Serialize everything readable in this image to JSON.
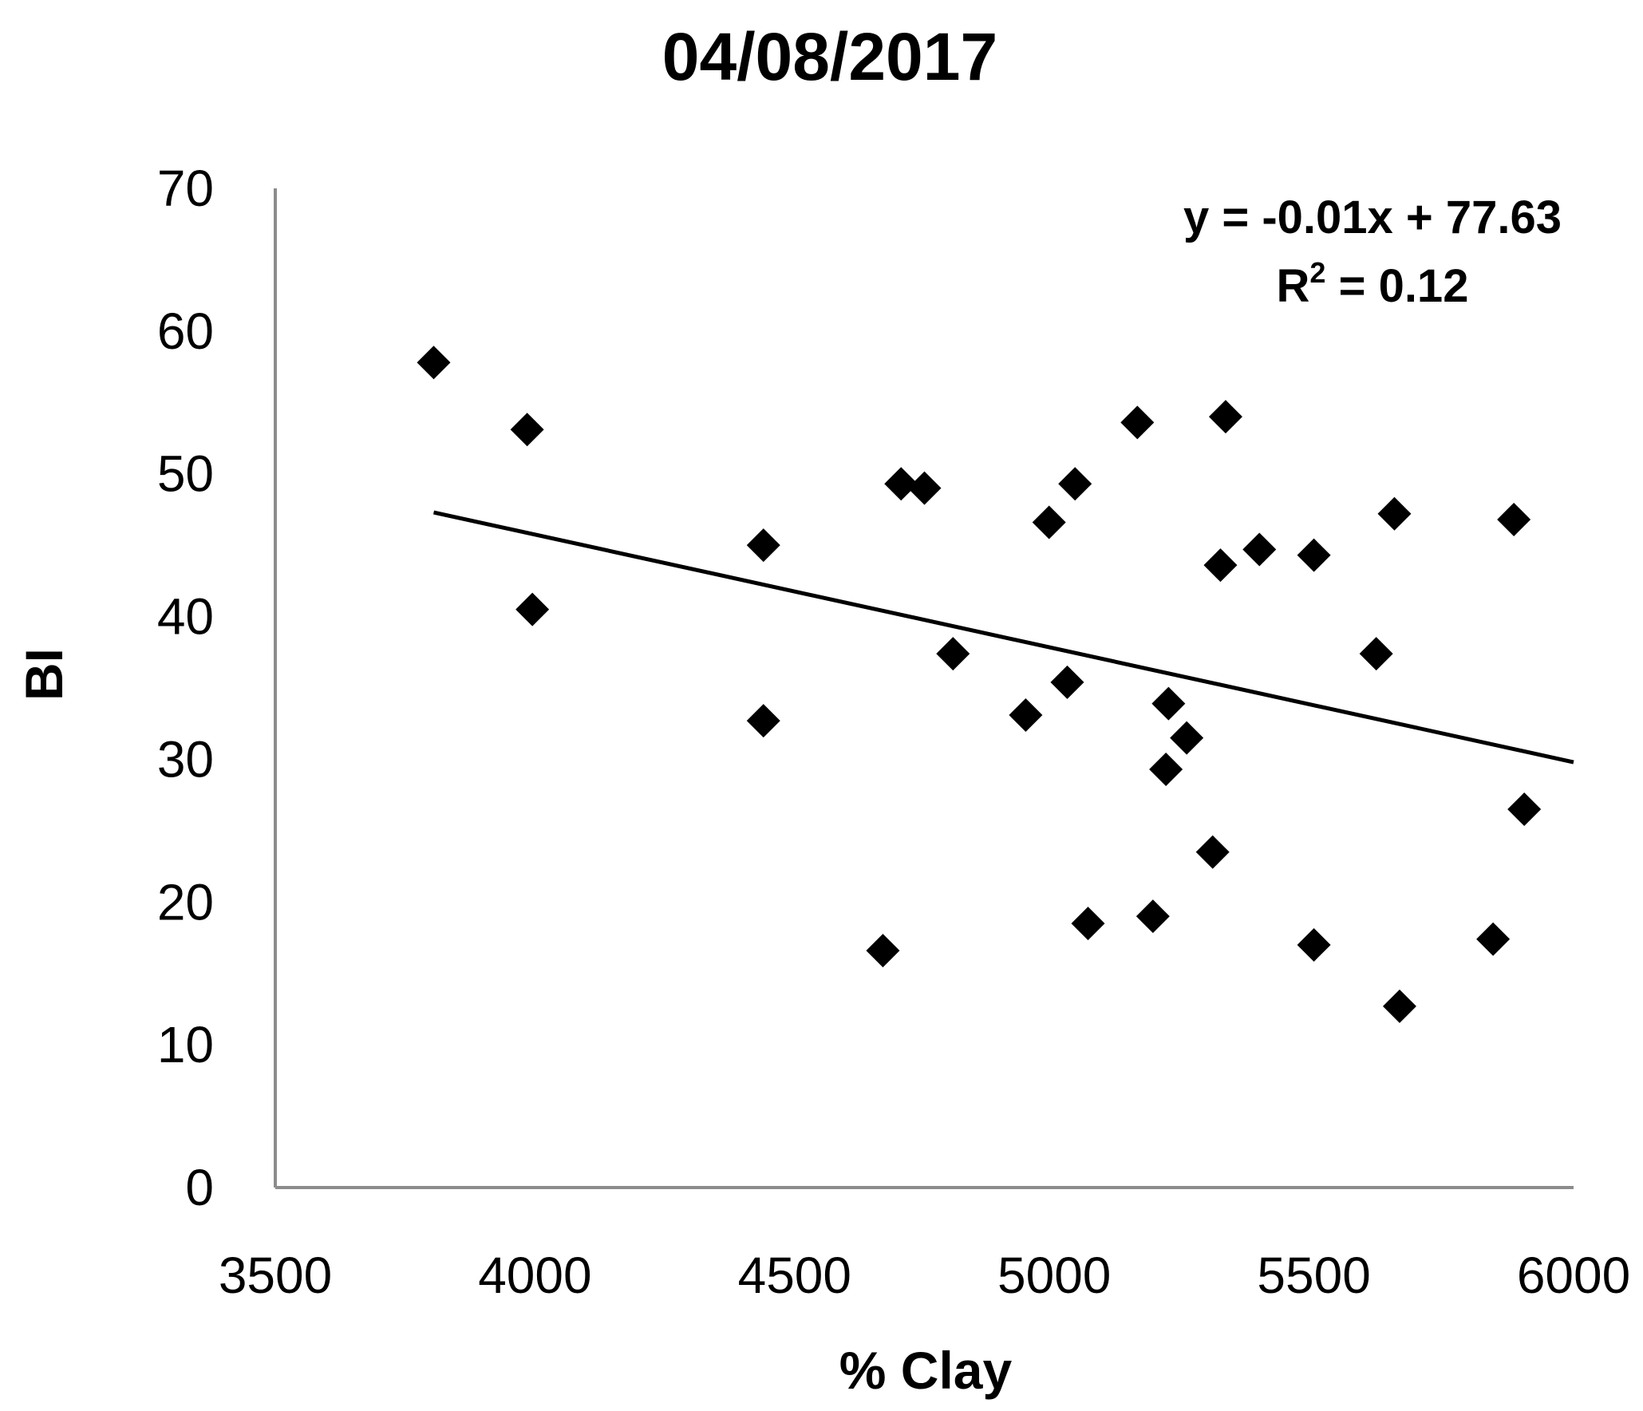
{
  "chart_data": {
    "type": "scatter",
    "title": "04/08/2017",
    "xlabel": "% Clay",
    "ylabel": "BI",
    "xlim": [
      3500,
      6000
    ],
    "ylim": [
      0,
      70
    ],
    "x_ticks": [
      "3500",
      "4000",
      "4500",
      "5000",
      "5500",
      "6000"
    ],
    "y_ticks": [
      "0",
      "10",
      "20",
      "30",
      "40",
      "50",
      "60",
      "70"
    ],
    "grid": false,
    "legend": "none",
    "marker": "diamond",
    "marker_color": "#000000",
    "series": [
      {
        "points": [
          {
            "x": 3805,
            "y": 57.8
          },
          {
            "x": 3985,
            "y": 53.1
          },
          {
            "x": 3995,
            "y": 40.5
          },
          {
            "x": 4440,
            "y": 45.0
          },
          {
            "x": 4440,
            "y": 32.7
          },
          {
            "x": 4670,
            "y": 16.6
          },
          {
            "x": 4705,
            "y": 49.3
          },
          {
            "x": 4750,
            "y": 49.0
          },
          {
            "x": 4805,
            "y": 37.4
          },
          {
            "x": 4945,
            "y": 33.1
          },
          {
            "x": 4990,
            "y": 46.6
          },
          {
            "x": 5025,
            "y": 35.4
          },
          {
            "x": 5040,
            "y": 49.3
          },
          {
            "x": 5065,
            "y": 18.5
          },
          {
            "x": 5160,
            "y": 53.6
          },
          {
            "x": 5190,
            "y": 19.0
          },
          {
            "x": 5215,
            "y": 29.3
          },
          {
            "x": 5220,
            "y": 33.9
          },
          {
            "x": 5255,
            "y": 31.5
          },
          {
            "x": 5305,
            "y": 23.5
          },
          {
            "x": 5320,
            "y": 43.6
          },
          {
            "x": 5330,
            "y": 54.0
          },
          {
            "x": 5395,
            "y": 44.7
          },
          {
            "x": 5500,
            "y": 44.3
          },
          {
            "x": 5500,
            "y": 17.0
          },
          {
            "x": 5620,
            "y": 37.4
          },
          {
            "x": 5655,
            "y": 47.2
          },
          {
            "x": 5665,
            "y": 12.7
          },
          {
            "x": 5845,
            "y": 17.4
          },
          {
            "x": 5885,
            "y": 46.8
          },
          {
            "x": 5905,
            "y": 26.5
          }
        ]
      }
    ],
    "trendline": {
      "equation": "y = -0.01x + 77.63",
      "r_squared": "0.12",
      "slope": -0.01,
      "intercept": 77.63,
      "x_range": [
        3805,
        6000
      ]
    }
  }
}
